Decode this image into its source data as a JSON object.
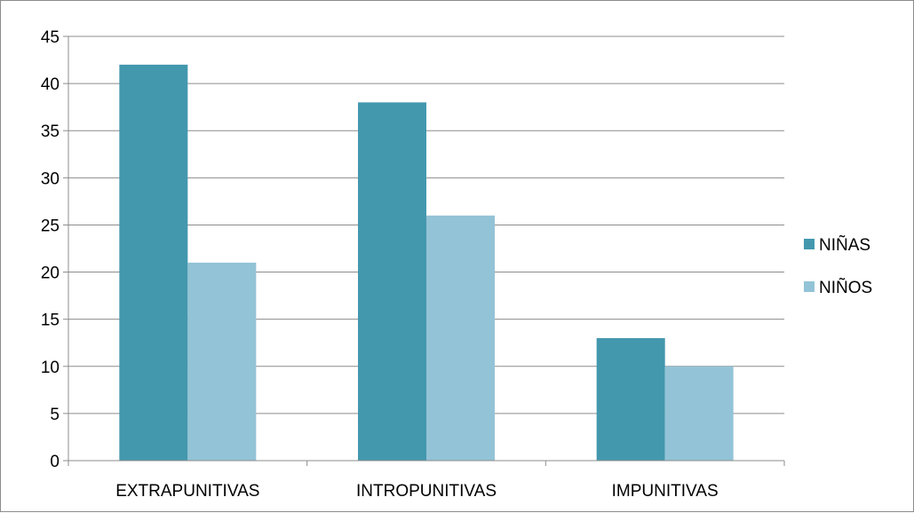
{
  "chart_data": {
    "type": "bar",
    "categories": [
      "EXTRAPUNITIVAS",
      "INTROPUNITIVAS",
      "IMPUNITIVAS"
    ],
    "series": [
      {
        "name": "NIÑAS",
        "values": [
          42,
          38,
          13
        ],
        "color": "#4398ae"
      },
      {
        "name": "NIÑOS",
        "values": [
          21,
          26,
          10
        ],
        "color": "#93c3d6"
      }
    ],
    "ylim": [
      0,
      45
    ],
    "yticks": [
      0,
      5,
      10,
      15,
      20,
      25,
      30,
      35,
      40,
      45
    ],
    "grid": true,
    "legend_position": "right",
    "title": "",
    "xlabel": "",
    "ylabel": ""
  }
}
